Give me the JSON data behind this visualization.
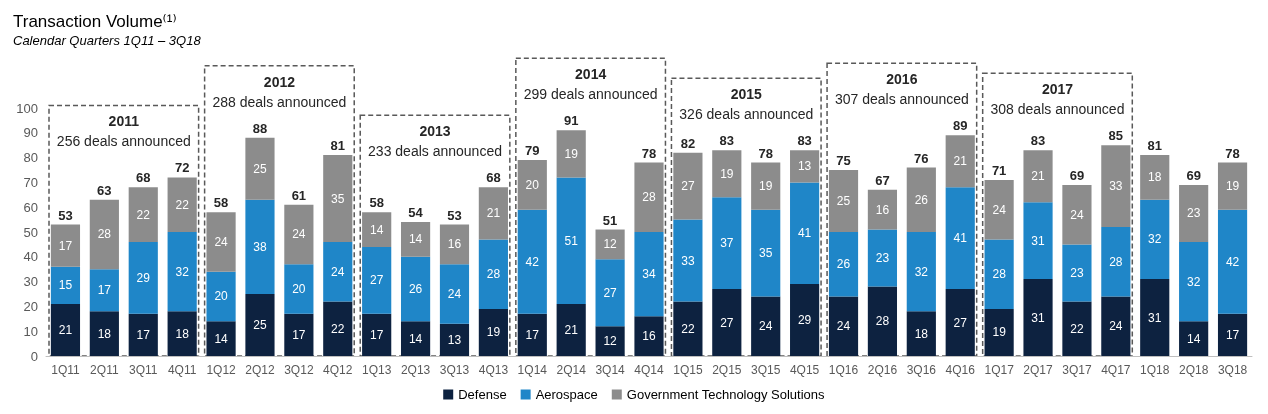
{
  "chart_data": {
    "type": "bar",
    "title": "Transaction Volume⁽¹⁾",
    "subtitle": "Calendar Quarters 1Q11 – 3Q18",
    "stacked": true,
    "data_labels": true,
    "grid": false,
    "legend": "bottom",
    "categories": [
      "1Q11",
      "2Q11",
      "3Q11",
      "4Q11",
      "1Q12",
      "2Q12",
      "3Q12",
      "4Q12",
      "1Q13",
      "2Q13",
      "3Q13",
      "4Q13",
      "1Q14",
      "2Q14",
      "3Q14",
      "4Q14",
      "1Q15",
      "2Q15",
      "3Q15",
      "4Q15",
      "1Q16",
      "2Q16",
      "3Q16",
      "4Q16",
      "1Q17",
      "2Q17",
      "3Q17",
      "4Q17",
      "1Q18",
      "2Q18",
      "3Q18"
    ],
    "ylim": [
      0,
      100
    ],
    "yticks": [
      0,
      10,
      20,
      30,
      40,
      50,
      60,
      70,
      80,
      90,
      100
    ],
    "series": [
      {
        "name": "Defense",
        "color": "#0d2240",
        "values": [
          21,
          18,
          17,
          18,
          14,
          25,
          17,
          22,
          17,
          14,
          13,
          19,
          17,
          21,
          12,
          16,
          22,
          27,
          24,
          29,
          24,
          28,
          18,
          27,
          19,
          31,
          22,
          24,
          31,
          14,
          17
        ]
      },
      {
        "name": "Aerospace",
        "color": "#1f86c8",
        "values": [
          15,
          17,
          29,
          32,
          20,
          38,
          20,
          24,
          27,
          26,
          24,
          28,
          42,
          51,
          27,
          34,
          33,
          37,
          35,
          41,
          26,
          23,
          32,
          41,
          28,
          31,
          23,
          28,
          32,
          32,
          42
        ]
      },
      {
        "name": "Government Technology Solutions",
        "color": "#8c8c8c",
        "values": [
          17,
          28,
          22,
          22,
          24,
          25,
          24,
          35,
          14,
          14,
          16,
          21,
          20,
          19,
          12,
          28,
          27,
          19,
          19,
          13,
          25,
          16,
          26,
          21,
          24,
          21,
          24,
          33,
          18,
          23,
          19
        ]
      }
    ],
    "totals": [
      "53",
      "63",
      "68",
      "72",
      "58",
      "88",
      "61",
      "81",
      "58",
      "54",
      "53",
      "68",
      "79",
      "91",
      "51",
      "78",
      "82",
      "83",
      "78",
      "83",
      "75",
      "67",
      "76",
      "89",
      "71",
      "83",
      "69",
      "85",
      "81",
      "69",
      "78"
    ],
    "annotations": [
      "2011\n256 deals announced",
      "2012\n288 deals announced",
      "2013\n233 deals announced",
      "2014\n299 deals announced",
      "2015\n326 deals announced",
      "2016\n307 deals announced",
      "2017\n308 deals announced"
    ]
  }
}
